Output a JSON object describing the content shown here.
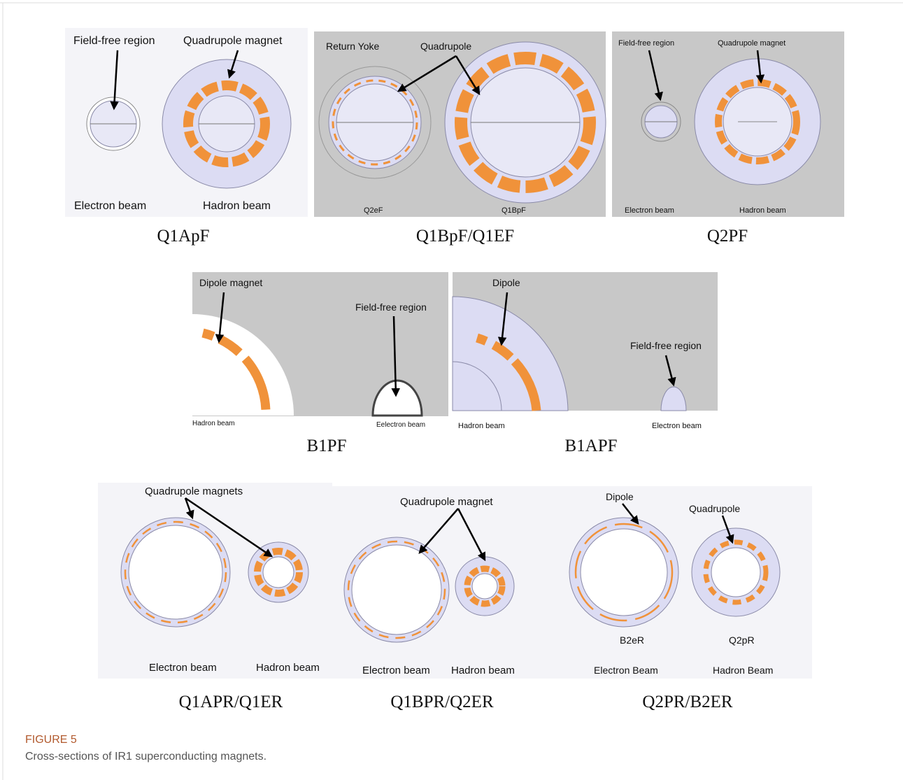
{
  "figure": {
    "panels": [
      {
        "caption": "Q1ApF",
        "labels": [
          "Field-free region",
          "Quadrupole magnet",
          "Electron beam",
          "Hadron beam"
        ]
      },
      {
        "caption": "Q1BpF/Q1EF",
        "labels": [
          "Return Yoke",
          "Quadrupole",
          "Q2eF",
          "Q1BpF"
        ]
      },
      {
        "caption": "Q2PF",
        "labels": [
          "Field-free region",
          "Quadrupole magnet",
          "Electron beam",
          "Hadron beam"
        ]
      },
      {
        "caption": "B1PF",
        "labels": [
          "Dipole magnet",
          "Field-free region",
          "Hadron beam",
          "Eelectron beam"
        ]
      },
      {
        "caption": "B1APF",
        "labels": [
          "Dipole",
          "Field-free region",
          "Hadron beam",
          "Electron beam"
        ]
      },
      {
        "caption": "Q1APR/Q1ER",
        "labels": [
          "Quadrupole magnets",
          "Electron beam",
          "Hadron beam"
        ]
      },
      {
        "caption": "Q1BPR/Q2ER",
        "labels": [
          "Quadrupole magnet",
          "Electron beam",
          "Hadron beam"
        ]
      },
      {
        "caption": "Q2PR/B2ER",
        "labels": [
          "Dipole",
          "Quadrupole",
          "B2eR",
          "Q2pR",
          "Electron Beam",
          "Hadron Beam"
        ]
      }
    ],
    "label": "FIGURE 5",
    "caption": "Cross-sections of IR1 superconducting magnets."
  }
}
